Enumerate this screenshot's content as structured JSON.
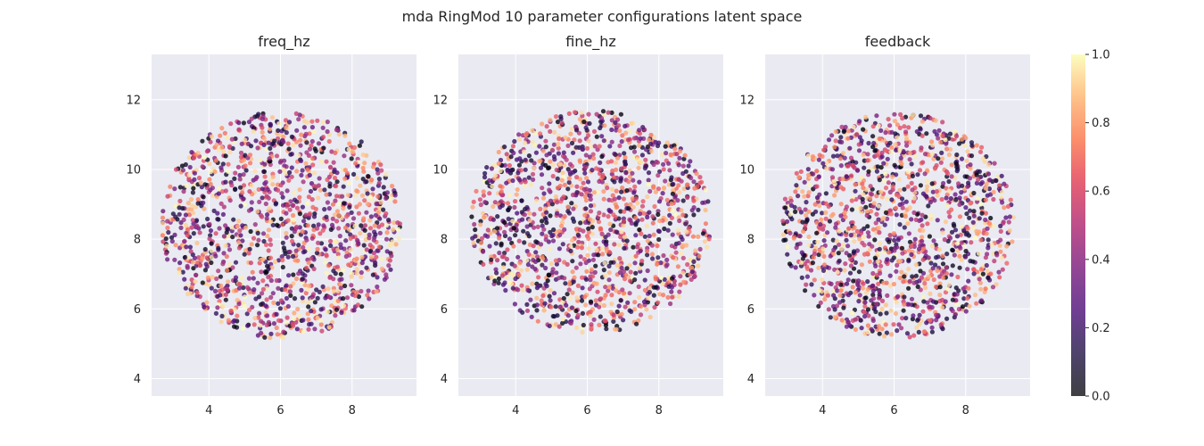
{
  "figure": {
    "suptitle": "mda RingMod 10 parameter configurations latent space"
  },
  "chart_data": {
    "type": "scatter",
    "title": "mda RingMod 10 parameter configurations latent space",
    "xlim": [
      2.4,
      9.8
    ],
    "ylim": [
      3.5,
      13.3
    ],
    "x_ticks": [
      4,
      6,
      8
    ],
    "y_ticks": [
      4,
      6,
      8,
      10,
      12
    ],
    "grid": true,
    "colormap": "magma",
    "colorbar": {
      "range": [
        0.0,
        1.0
      ],
      "ticks": [
        0.0,
        0.2,
        0.4,
        0.6,
        0.8,
        1.0
      ],
      "tick_labels": [
        "0.0",
        "0.2",
        "0.4",
        "0.6",
        "0.8",
        "1.0"
      ]
    },
    "panels": [
      {
        "name": "freq_hz",
        "center": [
          6.0,
          8.4
        ],
        "radius_x": 3.4,
        "radius_y": 3.3,
        "n_points": 1400,
        "seed": 11
      },
      {
        "name": "fine_hz",
        "center": [
          6.1,
          8.5
        ],
        "radius_x": 3.4,
        "radius_y": 3.25,
        "n_points": 1400,
        "seed": 23
      },
      {
        "name": "feedback",
        "center": [
          6.1,
          8.4
        ],
        "radius_x": 3.3,
        "radius_y": 3.3,
        "n_points": 1400,
        "seed": 37
      }
    ]
  },
  "colors": {
    "plot_background": "#eaeaf2",
    "grid": "#ffffff",
    "text": "#262626"
  }
}
